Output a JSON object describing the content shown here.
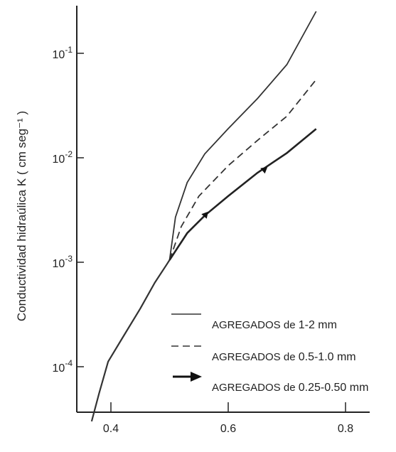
{
  "chart_data": {
    "type": "line",
    "title": "",
    "xlabel": "",
    "ylabel": "Conductividad hidraúlica K ( cm seg⁻¹ )",
    "xlim": [
      0.36,
      0.8
    ],
    "ylim": [
      3e-05,
      0.3
    ],
    "y_scale": "log",
    "grid": false,
    "legend_position": "bottom-right",
    "x_ticks": [
      {
        "value": 0.4,
        "label": "0.4"
      },
      {
        "value": 0.6,
        "label": "0.6"
      },
      {
        "value": 0.8,
        "label": "0.8"
      }
    ],
    "y_ticks": [
      {
        "value": 0.0001,
        "base": "10",
        "exp": "-4"
      },
      {
        "value": 0.001,
        "base": "10",
        "exp": "-3"
      },
      {
        "value": 0.01,
        "base": "10",
        "exp": "-2"
      },
      {
        "value": 0.1,
        "base": "10",
        "exp": "-1"
      }
    ],
    "shared_x": [
      0.3671,
      0.38,
      0.3953,
      0.42,
      0.45,
      0.475,
      0.495,
      0.5
    ],
    "shared_y": [
      3e-05,
      5.6e-05,
      0.000112,
      0.00019,
      0.00036,
      0.00064,
      0.00095,
      0.00105
    ],
    "series": [
      {
        "legend_prefix": "AGREGADOS de",
        "legend_size": "1-2 mm",
        "style": "solid",
        "x": [
          0.5,
          0.51,
          0.53,
          0.56,
          0.6,
          0.65,
          0.7,
          0.75
        ],
        "y": [
          0.00105,
          0.0027,
          0.0058,
          0.0109,
          0.019,
          0.037,
          0.078,
          0.252
        ]
      },
      {
        "legend_prefix": "AGREGADOS de",
        "legend_size": "0.5-1.0 mm",
        "style": "dashed",
        "x": [
          0.5,
          0.52,
          0.55,
          0.6,
          0.65,
          0.7,
          0.75
        ],
        "y": [
          0.00105,
          0.0022,
          0.0043,
          0.0084,
          0.0147,
          0.025,
          0.056
        ]
      },
      {
        "legend_prefix": "AGREGADOS de",
        "legend_size": "0.25-0.50 mm",
        "style": "arrow",
        "x": [
          0.5,
          0.53,
          0.56,
          0.6,
          0.65,
          0.7,
          0.75
        ],
        "y": [
          0.00105,
          0.0019,
          0.0028,
          0.0043,
          0.0072,
          0.0111,
          0.0189
        ]
      }
    ]
  }
}
